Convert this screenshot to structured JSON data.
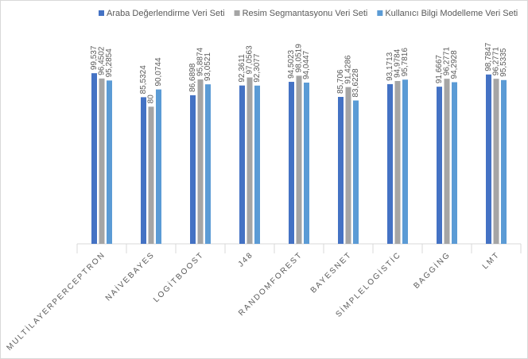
{
  "chart_data": {
    "type": "bar",
    "categories": [
      "MULTİLAYERPERCEPTRON",
      "NAİVEBAYES",
      "LOGİTBOOST",
      "J48",
      "RANDOMFOREST",
      "BAYESNET",
      "SİMPLELOGİSTİC",
      "BAGGİNG",
      "LMT"
    ],
    "series": [
      {
        "name": "Araba Değerlendirme Veri Seti",
        "color": "#4472c4",
        "values": [
          99.537,
          85.5324,
          86.6898,
          92.3611,
          94.5023,
          85.706,
          93.1713,
          91.6667,
          98.7847
        ],
        "value_labels": [
          "99,537",
          "85,5324",
          "86,6898",
          "92,3611",
          "94,5023",
          "85,706",
          "93,1713",
          "91,6667",
          "98,7847"
        ]
      },
      {
        "name": "Resim Segmantasyonu Veri Seti",
        "color": "#a5a5a5",
        "values": [
          96.4502,
          80,
          95.8874,
          97.0563,
          98.0519,
          91.4286,
          94.9784,
          96.2771,
          96.2771
        ],
        "value_labels": [
          "96,4502",
          "80",
          "95,8874",
          "97,0563",
          "98,0519",
          "91,4286",
          "94,9784",
          "96,2771",
          "96,2771"
        ]
      },
      {
        "name": "Kullanıcı Bilgi Modelleme Veri Seti",
        "color": "#5b9bd5",
        "values": [
          95.2854,
          90.0744,
          93.0521,
          92.3077,
          94.0447,
          83.6228,
          95.7816,
          94.2928,
          95.5335
        ],
        "value_labels": [
          "95,2854",
          "90,0744",
          "93,0521",
          "92,3077",
          "94,0447",
          "83,6228",
          "95,7816",
          "94,2928",
          "95,5335"
        ]
      }
    ],
    "ylim": [
      0,
      120
    ],
    "legend": "top"
  }
}
